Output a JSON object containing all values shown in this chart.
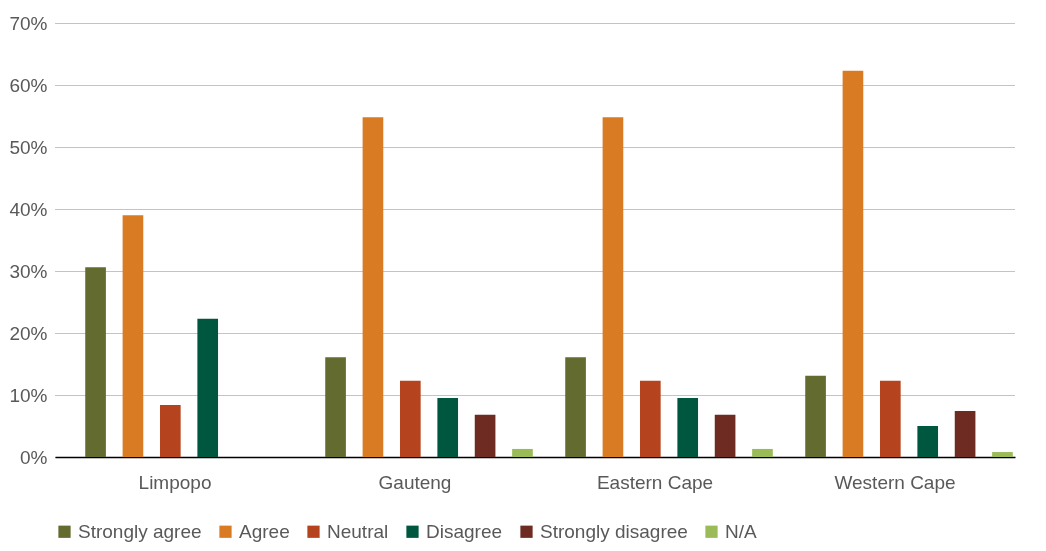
{
  "chart_data": {
    "type": "bar",
    "categories": [
      "Limpopo",
      "Gauteng",
      "Eastern Cape",
      "Western Cape"
    ],
    "series": [
      {
        "name": "Strongly agree",
        "color": "#636b2f",
        "values": [
          30.6,
          16.1,
          16.1,
          13.1
        ]
      },
      {
        "name": "Agree",
        "color": "#d97b22",
        "values": [
          39,
          54.8,
          54.8,
          62.3
        ]
      },
      {
        "name": "Neutral",
        "color": "#b5441e",
        "values": [
          8.4,
          12.3,
          12.3,
          12.3
        ]
      },
      {
        "name": "Disagree",
        "color": "#00573f",
        "values": [
          22.3,
          9.5,
          9.5,
          5
        ]
      },
      {
        "name": "Strongly disagree",
        "color": "#6d2b22",
        "values": [
          null,
          6.8,
          6.8,
          7.4
        ]
      },
      {
        "name": "N/A",
        "color": "#9bbb59",
        "values": [
          null,
          1.3,
          1.3,
          0.8
        ]
      }
    ],
    "ylim": [
      0,
      70
    ],
    "yticks": [
      {
        "value": 0,
        "label": "0%"
      },
      {
        "value": 10,
        "label": "10%"
      },
      {
        "value": 20,
        "label": "20%"
      },
      {
        "value": 30,
        "label": "30%"
      },
      {
        "value": 40,
        "label": "40%"
      },
      {
        "value": 50,
        "label": "50%"
      },
      {
        "value": 60,
        "label": "60%"
      },
      {
        "value": 70,
        "label": "70%"
      }
    ],
    "grid": "y",
    "legend": "bottom"
  }
}
